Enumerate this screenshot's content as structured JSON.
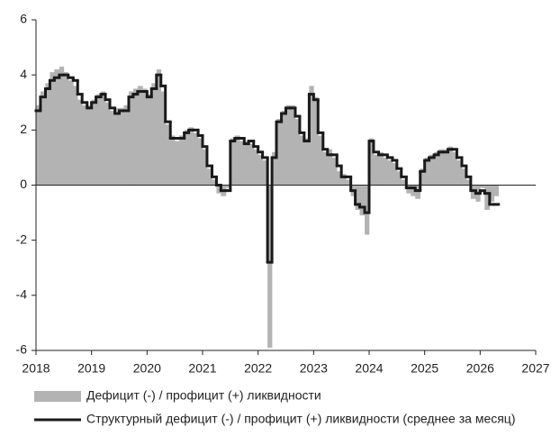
{
  "chart_data": {
    "type": "area-step",
    "x": [
      2018.0,
      2018.08,
      2018.17,
      2018.25,
      2018.33,
      2018.42,
      2018.5,
      2018.58,
      2018.67,
      2018.75,
      2018.83,
      2018.92,
      2019.0,
      2019.08,
      2019.17,
      2019.25,
      2019.33,
      2019.42,
      2019.5,
      2019.58,
      2019.67,
      2019.75,
      2019.83,
      2019.92,
      2020.0,
      2020.08,
      2020.17,
      2020.25,
      2020.33,
      2020.42,
      2020.5,
      2020.58,
      2020.67,
      2020.75,
      2020.83,
      2020.92,
      2021.0,
      2021.08,
      2021.17,
      2021.25,
      2021.33,
      2021.42,
      2021.5,
      2021.58,
      2021.67,
      2021.75,
      2021.83,
      2021.92,
      2022.0,
      2022.08,
      2022.17,
      2022.25,
      2022.33,
      2022.42,
      2022.5,
      2022.58,
      2022.67,
      2022.75,
      2022.83,
      2022.92,
      2023.0,
      2023.08,
      2023.17,
      2023.25,
      2023.33,
      2023.42,
      2023.5,
      2023.58,
      2023.67,
      2023.75,
      2023.83,
      2023.92,
      2024.0,
      2024.08,
      2024.17,
      2024.25,
      2024.33,
      2024.42,
      2024.5,
      2024.58,
      2024.67,
      2024.75,
      2024.83,
      2024.92,
      2025.0,
      2025.08,
      2025.17,
      2025.25,
      2025.33,
      2025.42,
      2025.5,
      2025.58,
      2025.67,
      2025.75,
      2025.83,
      2025.92,
      2026.0,
      2026.08,
      2026.17,
      2026.25
    ],
    "series": [
      {
        "name": "Дефицит (-) / профицит (+) ликвидности",
        "color": "#b3b3b3",
        "kind": "area",
        "values": [
          2.9,
          3.4,
          3.7,
          4.1,
          4.2,
          4.3,
          4.1,
          3.8,
          3.6,
          3.1,
          2.9,
          2.9,
          3.1,
          3.3,
          3.4,
          3.0,
          2.7,
          2.8,
          2.8,
          2.9,
          3.4,
          3.5,
          3.6,
          3.5,
          3.3,
          3.7,
          4.2,
          3.4,
          2.2,
          1.8,
          1.6,
          1.8,
          2.0,
          2.1,
          1.9,
          1.7,
          1.3,
          0.6,
          0.2,
          -0.3,
          -0.4,
          -0.1,
          1.7,
          1.8,
          1.6,
          1.6,
          1.5,
          1.3,
          1.1,
          0.9,
          -5.9,
          1.2,
          2.4,
          2.7,
          2.9,
          2.9,
          2.4,
          1.8,
          1.7,
          3.6,
          3.2,
          1.8,
          1.2,
          1.3,
          1.0,
          0.5,
          0.4,
          0.2,
          -0.4,
          -0.9,
          -1.1,
          -1.8,
          1.7,
          1.1,
          1.2,
          1.0,
          0.9,
          0.8,
          0.5,
          0.2,
          -0.3,
          -0.4,
          -0.5,
          0.6,
          1.0,
          1.1,
          1.2,
          1.3,
          1.3,
          1.4,
          1.2,
          0.9,
          0.6,
          0.2,
          -0.5,
          -0.6,
          -0.1,
          -0.9,
          -0.6,
          -0.4
        ]
      },
      {
        "name": "Структурный дефицит (-) / профицит (+) ликвидности (среднее за месяц)",
        "color": "#1a1a1a",
        "kind": "line",
        "values": [
          2.7,
          3.2,
          3.5,
          3.8,
          3.9,
          4.0,
          4.0,
          3.9,
          3.8,
          3.3,
          3.0,
          2.8,
          3.0,
          3.2,
          3.3,
          3.1,
          2.8,
          2.6,
          2.7,
          2.7,
          3.2,
          3.3,
          3.4,
          3.4,
          3.2,
          3.5,
          4.0,
          3.6,
          2.3,
          1.7,
          1.7,
          1.7,
          1.9,
          2.0,
          2.0,
          1.8,
          1.4,
          0.7,
          0.3,
          0.0,
          -0.2,
          -0.2,
          1.6,
          1.7,
          1.7,
          1.5,
          1.6,
          1.4,
          1.2,
          1.0,
          -2.8,
          1.0,
          2.3,
          2.6,
          2.8,
          2.8,
          2.5,
          1.9,
          1.6,
          3.3,
          3.1,
          1.9,
          1.3,
          1.1,
          1.1,
          0.7,
          0.3,
          0.3,
          -0.2,
          -0.7,
          -0.8,
          -1.0,
          1.6,
          1.2,
          1.1,
          1.1,
          1.0,
          0.9,
          0.6,
          0.3,
          -0.1,
          -0.1,
          -0.2,
          0.5,
          0.9,
          1.0,
          1.1,
          1.2,
          1.2,
          1.3,
          1.3,
          1.0,
          0.7,
          0.3,
          -0.2,
          -0.3,
          -0.2,
          -0.3,
          -0.7,
          -0.7
        ]
      }
    ],
    "xlim": [
      2018,
      2027
    ],
    "xticks": [
      2018,
      2019,
      2020,
      2021,
      2022,
      2023,
      2024,
      2025,
      2026,
      2027
    ],
    "ylim": [
      -6,
      6
    ],
    "yticks": [
      -6,
      -4,
      -2,
      0,
      2,
      4,
      6
    ],
    "grid": false
  }
}
